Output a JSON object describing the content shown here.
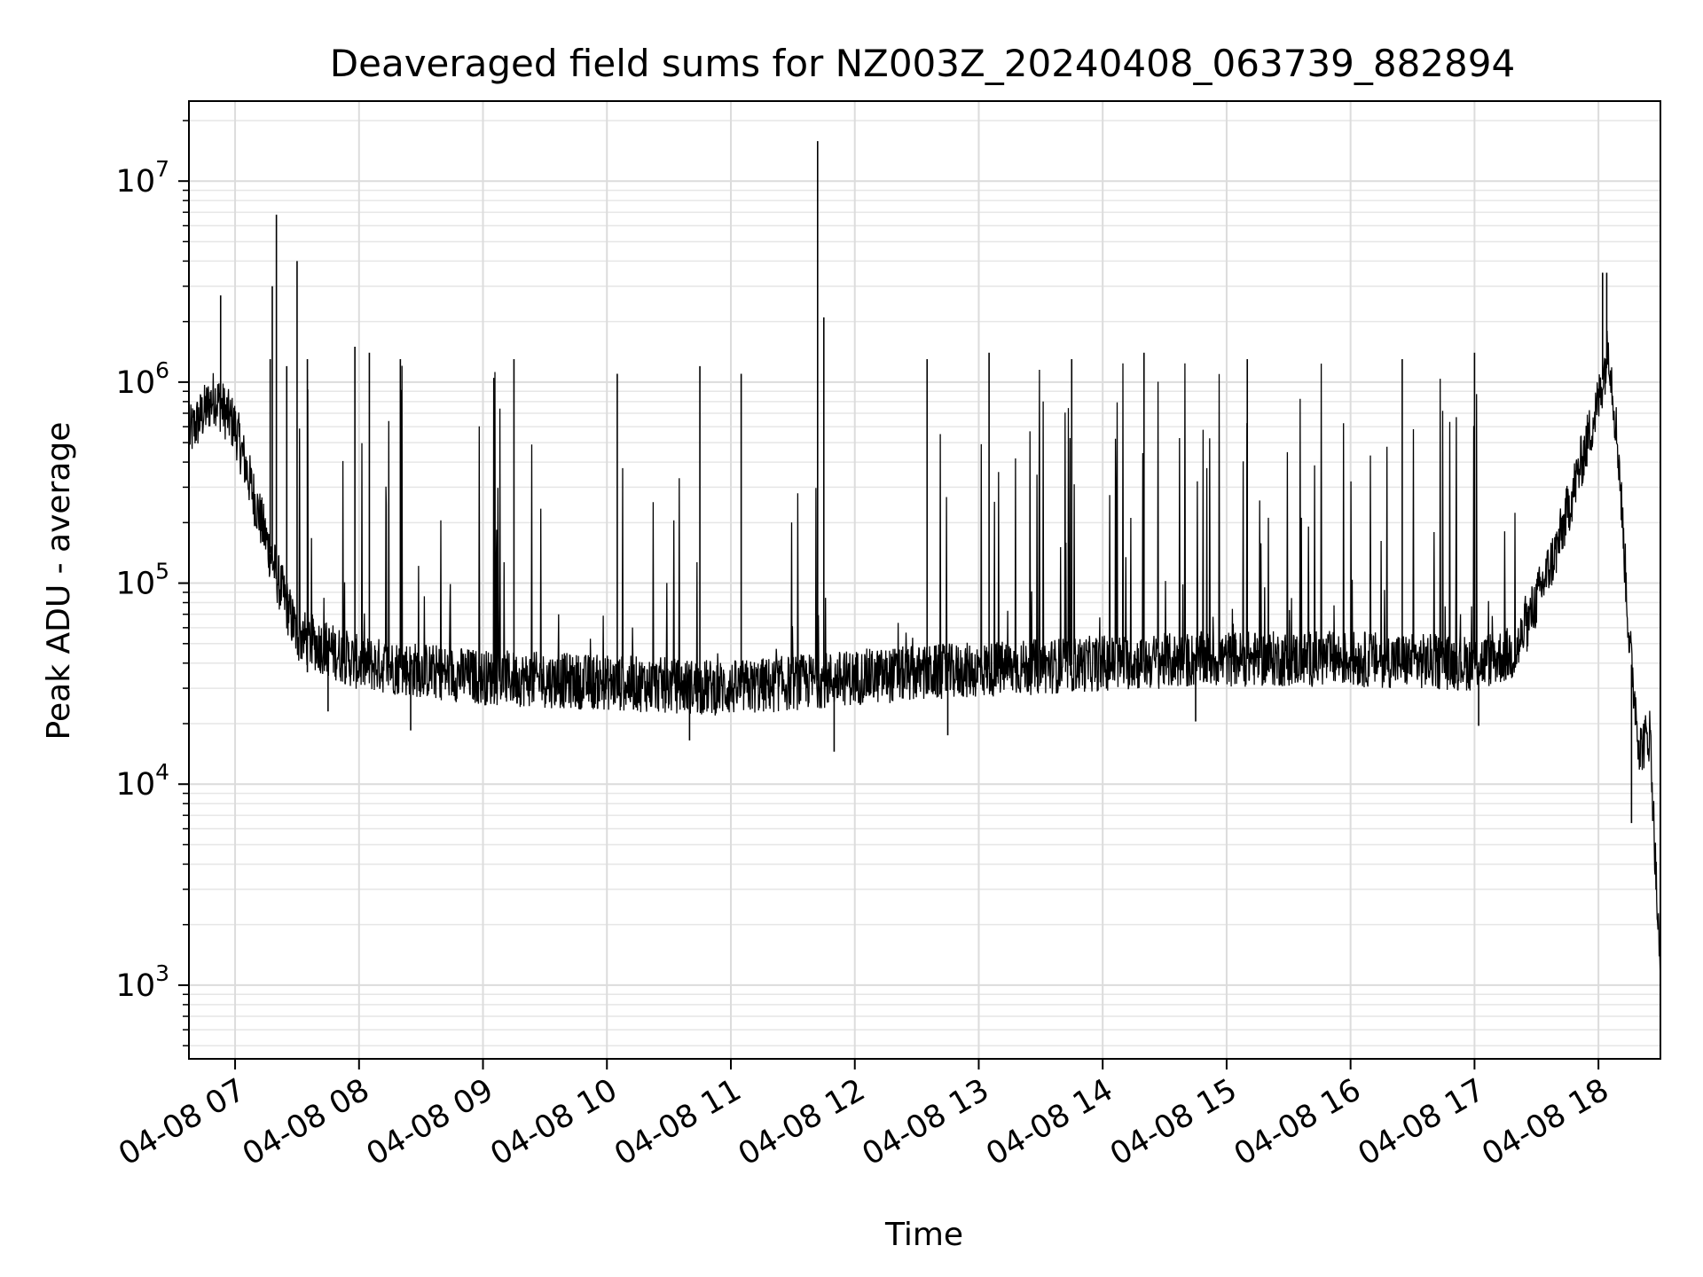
{
  "chart_data": {
    "type": "line",
    "title": "Deaveraged field sums for NZ003Z_20240408_063739_882894",
    "xlabel": "Time",
    "ylabel": "Peak ADU - average",
    "y_scale": "log",
    "ylim": [
      430,
      25000000
    ],
    "xlim": [
      "2024-04-08 06:37:39",
      "2024-04-08 18:30:00"
    ],
    "grid": "major and minor, light gray",
    "line_color": "#000000",
    "x_ticks": [
      {
        "value": "2024-04-08 07:00",
        "label": "04-08 07"
      },
      {
        "value": "2024-04-08 08:00",
        "label": "04-08 08"
      },
      {
        "value": "2024-04-08 09:00",
        "label": "04-08 09"
      },
      {
        "value": "2024-04-08 10:00",
        "label": "04-08 10"
      },
      {
        "value": "2024-04-08 11:00",
        "label": "04-08 11"
      },
      {
        "value": "2024-04-08 12:00",
        "label": "04-08 12"
      },
      {
        "value": "2024-04-08 13:00",
        "label": "04-08 13"
      },
      {
        "value": "2024-04-08 14:00",
        "label": "04-08 14"
      },
      {
        "value": "2024-04-08 15:00",
        "label": "04-08 15"
      },
      {
        "value": "2024-04-08 16:00",
        "label": "04-08 16"
      },
      {
        "value": "2024-04-08 17:00",
        "label": "04-08 17"
      },
      {
        "value": "2024-04-08 18:00",
        "label": "04-08 18"
      }
    ],
    "y_ticks": [
      {
        "value": 1000,
        "base": "10",
        "exp": "3"
      },
      {
        "value": 10000,
        "base": "10",
        "exp": "4"
      },
      {
        "value": 100000,
        "base": "10",
        "exp": "5"
      },
      {
        "value": 1000000,
        "base": "10",
        "exp": "6"
      },
      {
        "value": 10000000,
        "base": "10",
        "exp": "7"
      }
    ],
    "series": [
      {
        "baseline_profile": {
          "x": [
            "2024-04-08 06:38",
            "2024-04-08 06:50",
            "2024-04-08 07:00",
            "2024-04-08 07:10",
            "2024-04-08 07:20",
            "2024-04-08 07:30",
            "2024-04-08 08:00",
            "2024-04-08 09:00",
            "2024-04-08 10:00",
            "2024-04-08 11:00",
            "2024-04-08 12:00",
            "2024-04-08 13:00",
            "2024-04-08 14:00",
            "2024-04-08 15:00",
            "2024-04-08 16:00",
            "2024-04-08 17:00",
            "2024-04-08 17:20",
            "2024-04-08 17:40",
            "2024-04-08 18:00",
            "2024-04-08 18:05",
            "2024-04-08 18:10",
            "2024-04-08 18:15",
            "2024-04-08 18:20",
            "2024-04-08 18:25",
            "2024-04-08 18:30"
          ],
          "y": [
            550000,
            850000,
            600000,
            250000,
            110000,
            55000,
            40000,
            34000,
            32000,
            30000,
            34000,
            37000,
            40000,
            42000,
            42000,
            40000,
            45000,
            150000,
            800000,
            1500000,
            400000,
            50000,
            15000,
            18000,
            1000
          ]
        },
        "spikes": [
          {
            "x": "2024-04-08 06:53",
            "y": 2700000
          },
          {
            "x": "2024-04-08 07:18",
            "y": 3000000
          },
          {
            "x": "2024-04-08 07:17",
            "y": 1300000
          },
          {
            "x": "2024-04-08 07:20",
            "y": 6800000
          },
          {
            "x": "2024-04-08 07:25",
            "y": 1200000
          },
          {
            "x": "2024-04-08 07:30",
            "y": 4000000
          },
          {
            "x": "2024-04-08 07:35",
            "y": 1300000
          },
          {
            "x": "2024-04-08 07:58",
            "y": 1500000
          },
          {
            "x": "2024-04-08 08:05",
            "y": 1400000
          },
          {
            "x": "2024-04-08 08:20",
            "y": 1300000
          },
          {
            "x": "2024-04-08 09:15",
            "y": 1300000
          },
          {
            "x": "2024-04-08 10:05",
            "y": 1100000
          },
          {
            "x": "2024-04-08 10:45",
            "y": 1200000
          },
          {
            "x": "2024-04-08 11:05",
            "y": 1100000
          },
          {
            "x": "2024-04-08 11:42",
            "y": 15800000
          },
          {
            "x": "2024-04-08 11:45",
            "y": 2100000
          },
          {
            "x": "2024-04-08 12:35",
            "y": 1300000
          },
          {
            "x": "2024-04-08 13:05",
            "y": 1400000
          },
          {
            "x": "2024-04-08 13:45",
            "y": 1300000
          },
          {
            "x": "2024-04-08 14:20",
            "y": 1400000
          },
          {
            "x": "2024-04-08 15:10",
            "y": 1300000
          },
          {
            "x": "2024-04-08 16:25",
            "y": 1300000
          },
          {
            "x": "2024-04-08 17:00",
            "y": 1400000
          },
          {
            "x": "2024-04-08 18:02",
            "y": 3500000
          },
          {
            "x": "2024-04-08 18:04",
            "y": 3500000
          }
        ],
        "dips": [
          {
            "x": "2024-04-08 07:35",
            "y": 36000
          },
          {
            "x": "2024-04-08 07:45",
            "y": 23000
          },
          {
            "x": "2024-04-08 08:25",
            "y": 18500
          },
          {
            "x": "2024-04-08 10:40",
            "y": 16500
          },
          {
            "x": "2024-04-08 11:50",
            "y": 14500
          },
          {
            "x": "2024-04-08 12:45",
            "y": 17500
          },
          {
            "x": "2024-04-08 14:45",
            "y": 20500
          },
          {
            "x": "2024-04-08 17:02",
            "y": 19500
          },
          {
            "x": "2024-04-08 18:16",
            "y": 6400
          }
        ],
        "dense_spike_ranges": [
          {
            "from": "2024-04-08 07:30",
            "to": "2024-04-08 09:25",
            "peak_typical": 1250000
          },
          {
            "from": "2024-04-08 09:25",
            "to": "2024-04-08 12:35",
            "peak_typical": 400000
          },
          {
            "from": "2024-04-08 12:35",
            "to": "2024-04-08 17:25",
            "peak_typical": 1250000
          }
        ]
      }
    ]
  }
}
